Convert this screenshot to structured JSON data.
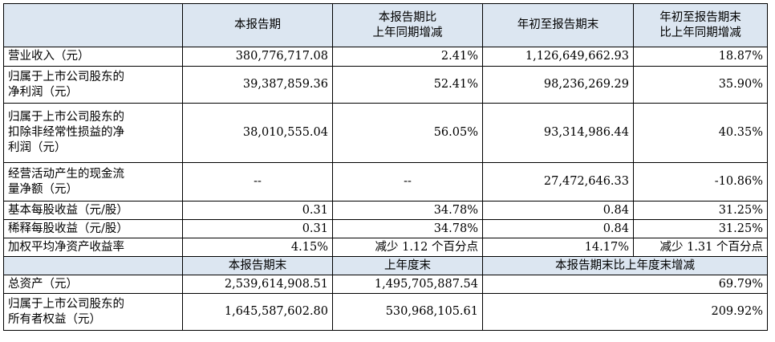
{
  "header": {
    "corner": "",
    "col1": "本报告期",
    "col2_line1": "本报告期比",
    "col2_line2": "上年同期增减",
    "col3": "年初至报告期末",
    "col4_line1": "年初至报告期末",
    "col4_line2": "比上年同期增减"
  },
  "rows": [
    {
      "label": "营业收入（元）",
      "c1": "380,776,717.08",
      "c2": "2.41%",
      "c3": "1,126,649,662.93",
      "c4": "18.87%"
    },
    {
      "label_l1": "归属于上市公司股东的",
      "label_l2": "净利润（元）",
      "c1": "39,387,859.36",
      "c2": "52.41%",
      "c3": "98,236,269.29",
      "c4": "35.90%"
    },
    {
      "label_l1": "归属于上市公司股东的",
      "label_l2": "扣除非经常性损益的净",
      "label_l3": "利润（元）",
      "c1": "38,010,555.04",
      "c2": "56.05%",
      "c3": "93,314,986.44",
      "c4": "40.35%"
    },
    {
      "label_l1": "经营活动产生的现金流",
      "label_l2": "量净额（元）",
      "c1": "--",
      "c2": "--",
      "c3": "27,472,646.33",
      "c4": "-10.86%"
    },
    {
      "label": "基本每股收益（元/股）",
      "c1": "0.31",
      "c2": "34.78%",
      "c3": "0.84",
      "c4": "31.25%"
    },
    {
      "label": "稀释每股收益（元/股）",
      "c1": "0.31",
      "c2": "34.78%",
      "c3": "0.84",
      "c4": "31.25%"
    },
    {
      "label": "加权平均净资产收益率",
      "c1": "4.15%",
      "c2": "减少 1.12 个百分点",
      "c3": "14.17%",
      "c4": "减少 1.31 个百分点"
    }
  ],
  "header2": {
    "corner": "",
    "col1": "本报告期末",
    "col2": "上年度末",
    "col3": "本报告期末比上年度末增减"
  },
  "rows2": [
    {
      "label": "总资产（元）",
      "c1": "2,539,614,908.51",
      "c2": "1,495,705,887.54",
      "c3": "69.79%"
    },
    {
      "label_l1": "归属于上市公司股东的",
      "label_l2": "所有者权益（元）",
      "c1": "1,645,587,602.80",
      "c2": "530,968,105.61",
      "c3": "209.92%"
    }
  ]
}
